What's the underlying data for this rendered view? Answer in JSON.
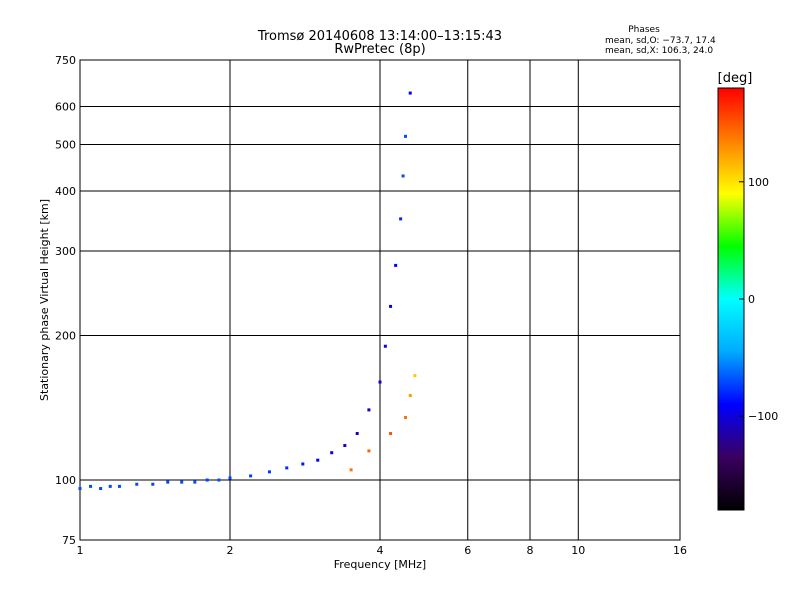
{
  "chart_data": {
    "type": "scatter",
    "title": "Tromsø 20140608 13:14:00–13:15:43",
    "subtitle": "RwPretec (8p)",
    "xlabel": "Frequency [MHz]",
    "ylabel": "Stationary phase Virtual Height [km]",
    "x_scale": "log",
    "y_scale": "log",
    "xlim": [
      1,
      16
    ],
    "ylim": [
      75,
      750
    ],
    "x_ticks": [
      1,
      2,
      4,
      6,
      8,
      10,
      16
    ],
    "x_tick_labels": [
      "1",
      "2",
      "4",
      "6",
      "8",
      "10",
      "16"
    ],
    "y_ticks": [
      75,
      100,
      200,
      300,
      400,
      500,
      600,
      750
    ],
    "y_tick_labels": [
      "75",
      "100",
      "200",
      "300",
      "400",
      "500",
      "600",
      "750"
    ],
    "grid": true,
    "phases_box": {
      "title": "Phases",
      "line1": "mean, sd,O: −73.7, 17.4",
      "line2": "mean, sd,X: 106.3, 24.0"
    },
    "colorbar": {
      "label": "[deg]",
      "range": [
        -180,
        180
      ],
      "ticks": [
        100,
        0,
        -100
      ],
      "tick_labels": [
        "100",
        "0",
        "−100"
      ],
      "colormap": "rainbow",
      "stops": [
        "#000000",
        "#3a0060",
        "#0000ff",
        "#00aaff",
        "#00ffff",
        "#00ff00",
        "#ffff00",
        "#ff8000",
        "#ff0000"
      ]
    },
    "series": [
      {
        "mode": "O",
        "points": [
          [
            1.0,
            96,
            -70
          ],
          [
            1.05,
            97,
            -70
          ],
          [
            1.1,
            96,
            -72
          ],
          [
            1.15,
            97,
            -71
          ],
          [
            1.2,
            97,
            -70
          ],
          [
            1.3,
            98,
            -70
          ],
          [
            1.4,
            98,
            -72
          ],
          [
            1.5,
            99,
            -71
          ],
          [
            1.6,
            99,
            -70
          ],
          [
            1.7,
            99,
            -70
          ],
          [
            1.8,
            100,
            -72
          ],
          [
            1.9,
            100,
            -70
          ],
          [
            2.0,
            101,
            -72
          ],
          [
            2.2,
            102,
            -73
          ],
          [
            2.4,
            104,
            -75
          ],
          [
            2.6,
            106,
            -78
          ],
          [
            2.8,
            108,
            -85
          ],
          [
            3.0,
            110,
            -95
          ],
          [
            3.2,
            114,
            -100
          ],
          [
            3.4,
            118,
            -105
          ],
          [
            3.6,
            125,
            -110
          ],
          [
            3.8,
            140,
            -110
          ],
          [
            4.0,
            160,
            -110
          ],
          [
            4.1,
            190,
            -100
          ],
          [
            4.2,
            230,
            -95
          ],
          [
            4.3,
            280,
            -90
          ],
          [
            4.4,
            350,
            -80
          ],
          [
            4.45,
            430,
            -70
          ],
          [
            4.5,
            520,
            -70
          ],
          [
            4.6,
            640,
            -90
          ]
        ]
      },
      {
        "mode": "X",
        "points": [
          [
            3.5,
            105,
            140
          ],
          [
            3.8,
            115,
            145
          ],
          [
            4.2,
            125,
            150
          ],
          [
            4.5,
            135,
            140
          ],
          [
            4.6,
            150,
            125
          ],
          [
            4.7,
            165,
            110
          ]
        ]
      }
    ]
  }
}
